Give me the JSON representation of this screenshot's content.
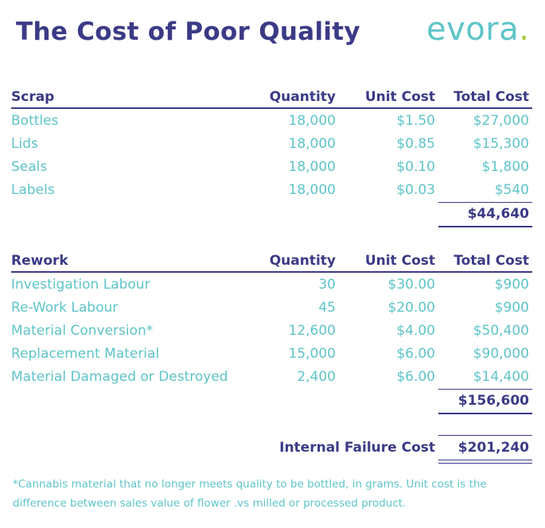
{
  "title": "The Cost of Poor Quality",
  "logo": {
    "text": "evora",
    "dot": "."
  },
  "columns": {
    "quantity": "Quantity",
    "unit_cost": "Unit Cost",
    "total_cost": "Total Cost"
  },
  "scrap": {
    "heading": "Scrap",
    "rows": [
      {
        "name": "Bottles",
        "qty": "18,000",
        "unit": "$1.50",
        "total": "$27,000"
      },
      {
        "name": "Lids",
        "qty": "18,000",
        "unit": "$0.85",
        "total": "$15,300"
      },
      {
        "name": "Seals",
        "qty": "18,000",
        "unit": "$0.10",
        "total": "$1,800"
      },
      {
        "name": "Labels",
        "qty": "18,000",
        "unit": "$0.03",
        "total": "$540"
      }
    ],
    "subtotal": "$44,640"
  },
  "rework": {
    "heading": "Rework",
    "rows": [
      {
        "name": "Investigation Labour",
        "qty": "30",
        "unit": "$30.00",
        "total": "$900"
      },
      {
        "name": "Re-Work Labour",
        "qty": "45",
        "unit": "$20.00",
        "total": "$900"
      },
      {
        "name": "Material Conversion*",
        "qty": "12,600",
        "unit": "$4.00",
        "total": "$50,400"
      },
      {
        "name": "Replacement Material",
        "qty": "15,000",
        "unit": "$6.00",
        "total": "$90,000"
      },
      {
        "name": "Material Damaged or Destroyed",
        "qty": "2,400",
        "unit": "$6.00",
        "total": "$14,400"
      }
    ],
    "subtotal": "$156,600"
  },
  "grand_total": {
    "label": "Internal Failure Cost",
    "value": "$201,240"
  },
  "footnote": {
    "line1": "*Cannabis material that no longer meets quality to be bottled, in grams. Unit cost is the",
    "line2": "difference between sales value of flower .vs milled or processed product."
  },
  "colors": {
    "navy": "#3b3a86",
    "teal": "#5ec4c8",
    "logo_dot": "#a6c93b"
  }
}
